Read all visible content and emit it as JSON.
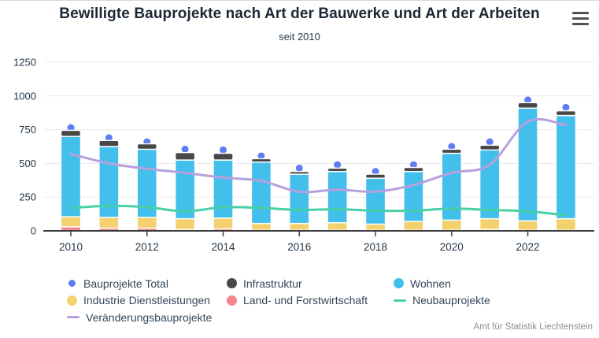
{
  "header": {
    "title": "Bewilligte Bauprojekte nach Art der Bauwerke und Art der Arbeiten",
    "subtitle": "seit 2010",
    "menu_icon": "hamburger-icon"
  },
  "source": "Amt für Statistik Liechtenstein",
  "colors": {
    "wohnen": "#43bfec",
    "industrie": "#f2d16e",
    "land": "#f5868e",
    "infrastruktur": "#484848",
    "total_dot": "#5f7df2",
    "neubau_line": "#47d0a6",
    "veraenderung_line": "#b7a0de",
    "grid": "#e9e9e9",
    "axis_line": "#3b3b3b",
    "axis_text": "#243748"
  },
  "chart_data": {
    "type": "bar",
    "subtype": "stacked-bars-with-lines-and-points",
    "title": "Bewilligte Bauprojekte nach Art der Bauwerke und Art der Arbeiten",
    "subtitle": "seit 2010",
    "categories": [
      "2010",
      "2011",
      "2012",
      "2013",
      "2014",
      "2015",
      "2016",
      "2017",
      "2018",
      "2019",
      "2020",
      "2021",
      "2022",
      "2023"
    ],
    "x_tick_labels": [
      "2010",
      "2012",
      "2014",
      "2016",
      "2018",
      "2020",
      "2022"
    ],
    "x_label_every": 2,
    "y_ticks": [
      0,
      250,
      500,
      750,
      1000,
      1250
    ],
    "ylim": [
      0,
      1250
    ],
    "grid": true,
    "legend_position": "bottom",
    "stacked_series": [
      {
        "name": "Land- und Forstwirtschaft",
        "color": "#f5868e",
        "values": [
          30,
          20,
          20,
          10,
          15,
          5,
          5,
          5,
          5,
          5,
          5,
          10,
          5,
          5
        ]
      },
      {
        "name": "Industrie Dienstleistungen",
        "color": "#f2d16e",
        "values": [
          75,
          80,
          80,
          80,
          80,
          50,
          50,
          55,
          45,
          65,
          75,
          80,
          70,
          85
        ]
      },
      {
        "name": "Wohnen",
        "color": "#43bfec",
        "values": [
          595,
          525,
          505,
          435,
          430,
          455,
          365,
          380,
          340,
          370,
          495,
          510,
          835,
          765
        ]
      },
      {
        "name": "Infrastruktur",
        "color": "#484848",
        "values": [
          45,
          45,
          40,
          55,
          50,
          25,
          20,
          25,
          30,
          30,
          30,
          35,
          40,
          35
        ]
      }
    ],
    "point_series": [
      {
        "name": "Bauprojekte Total",
        "color": "#5f7df2",
        "values": [
          765,
          690,
          660,
          605,
          600,
          555,
          465,
          490,
          440,
          490,
          625,
          660,
          970,
          915
        ]
      }
    ],
    "line_series": [
      {
        "name": "Neubauprojekte",
        "color": "#47d0a6",
        "values": [
          170,
          185,
          175,
          145,
          175,
          170,
          155,
          160,
          150,
          150,
          165,
          155,
          145,
          115
        ]
      },
      {
        "name": "Veränderungsbauprojekte",
        "color": "#b7a0de",
        "values": [
          570,
          500,
          460,
          430,
          395,
          370,
          290,
          305,
          290,
          340,
          430,
          490,
          810,
          785
        ]
      }
    ]
  },
  "legend": {
    "items": [
      {
        "label": "Bauprojekte Total",
        "swatch": "dot",
        "color": "#5f7df2"
      },
      {
        "label": "Infrastruktur",
        "swatch": "circle",
        "color": "#484848"
      },
      {
        "label": "Wohnen",
        "swatch": "circle",
        "color": "#43bfec"
      },
      {
        "label": "Industrie Dienstleistungen",
        "swatch": "circle",
        "color": "#f2d16e"
      },
      {
        "label": "Land- und Forstwirtschaft",
        "swatch": "circle",
        "color": "#f5868e"
      },
      {
        "label": "Neubauprojekte",
        "swatch": "line",
        "color": "#47d0a6"
      },
      {
        "label": "Veränderungsbauprojekte",
        "swatch": "line",
        "color": "#b7a0de"
      }
    ]
  }
}
